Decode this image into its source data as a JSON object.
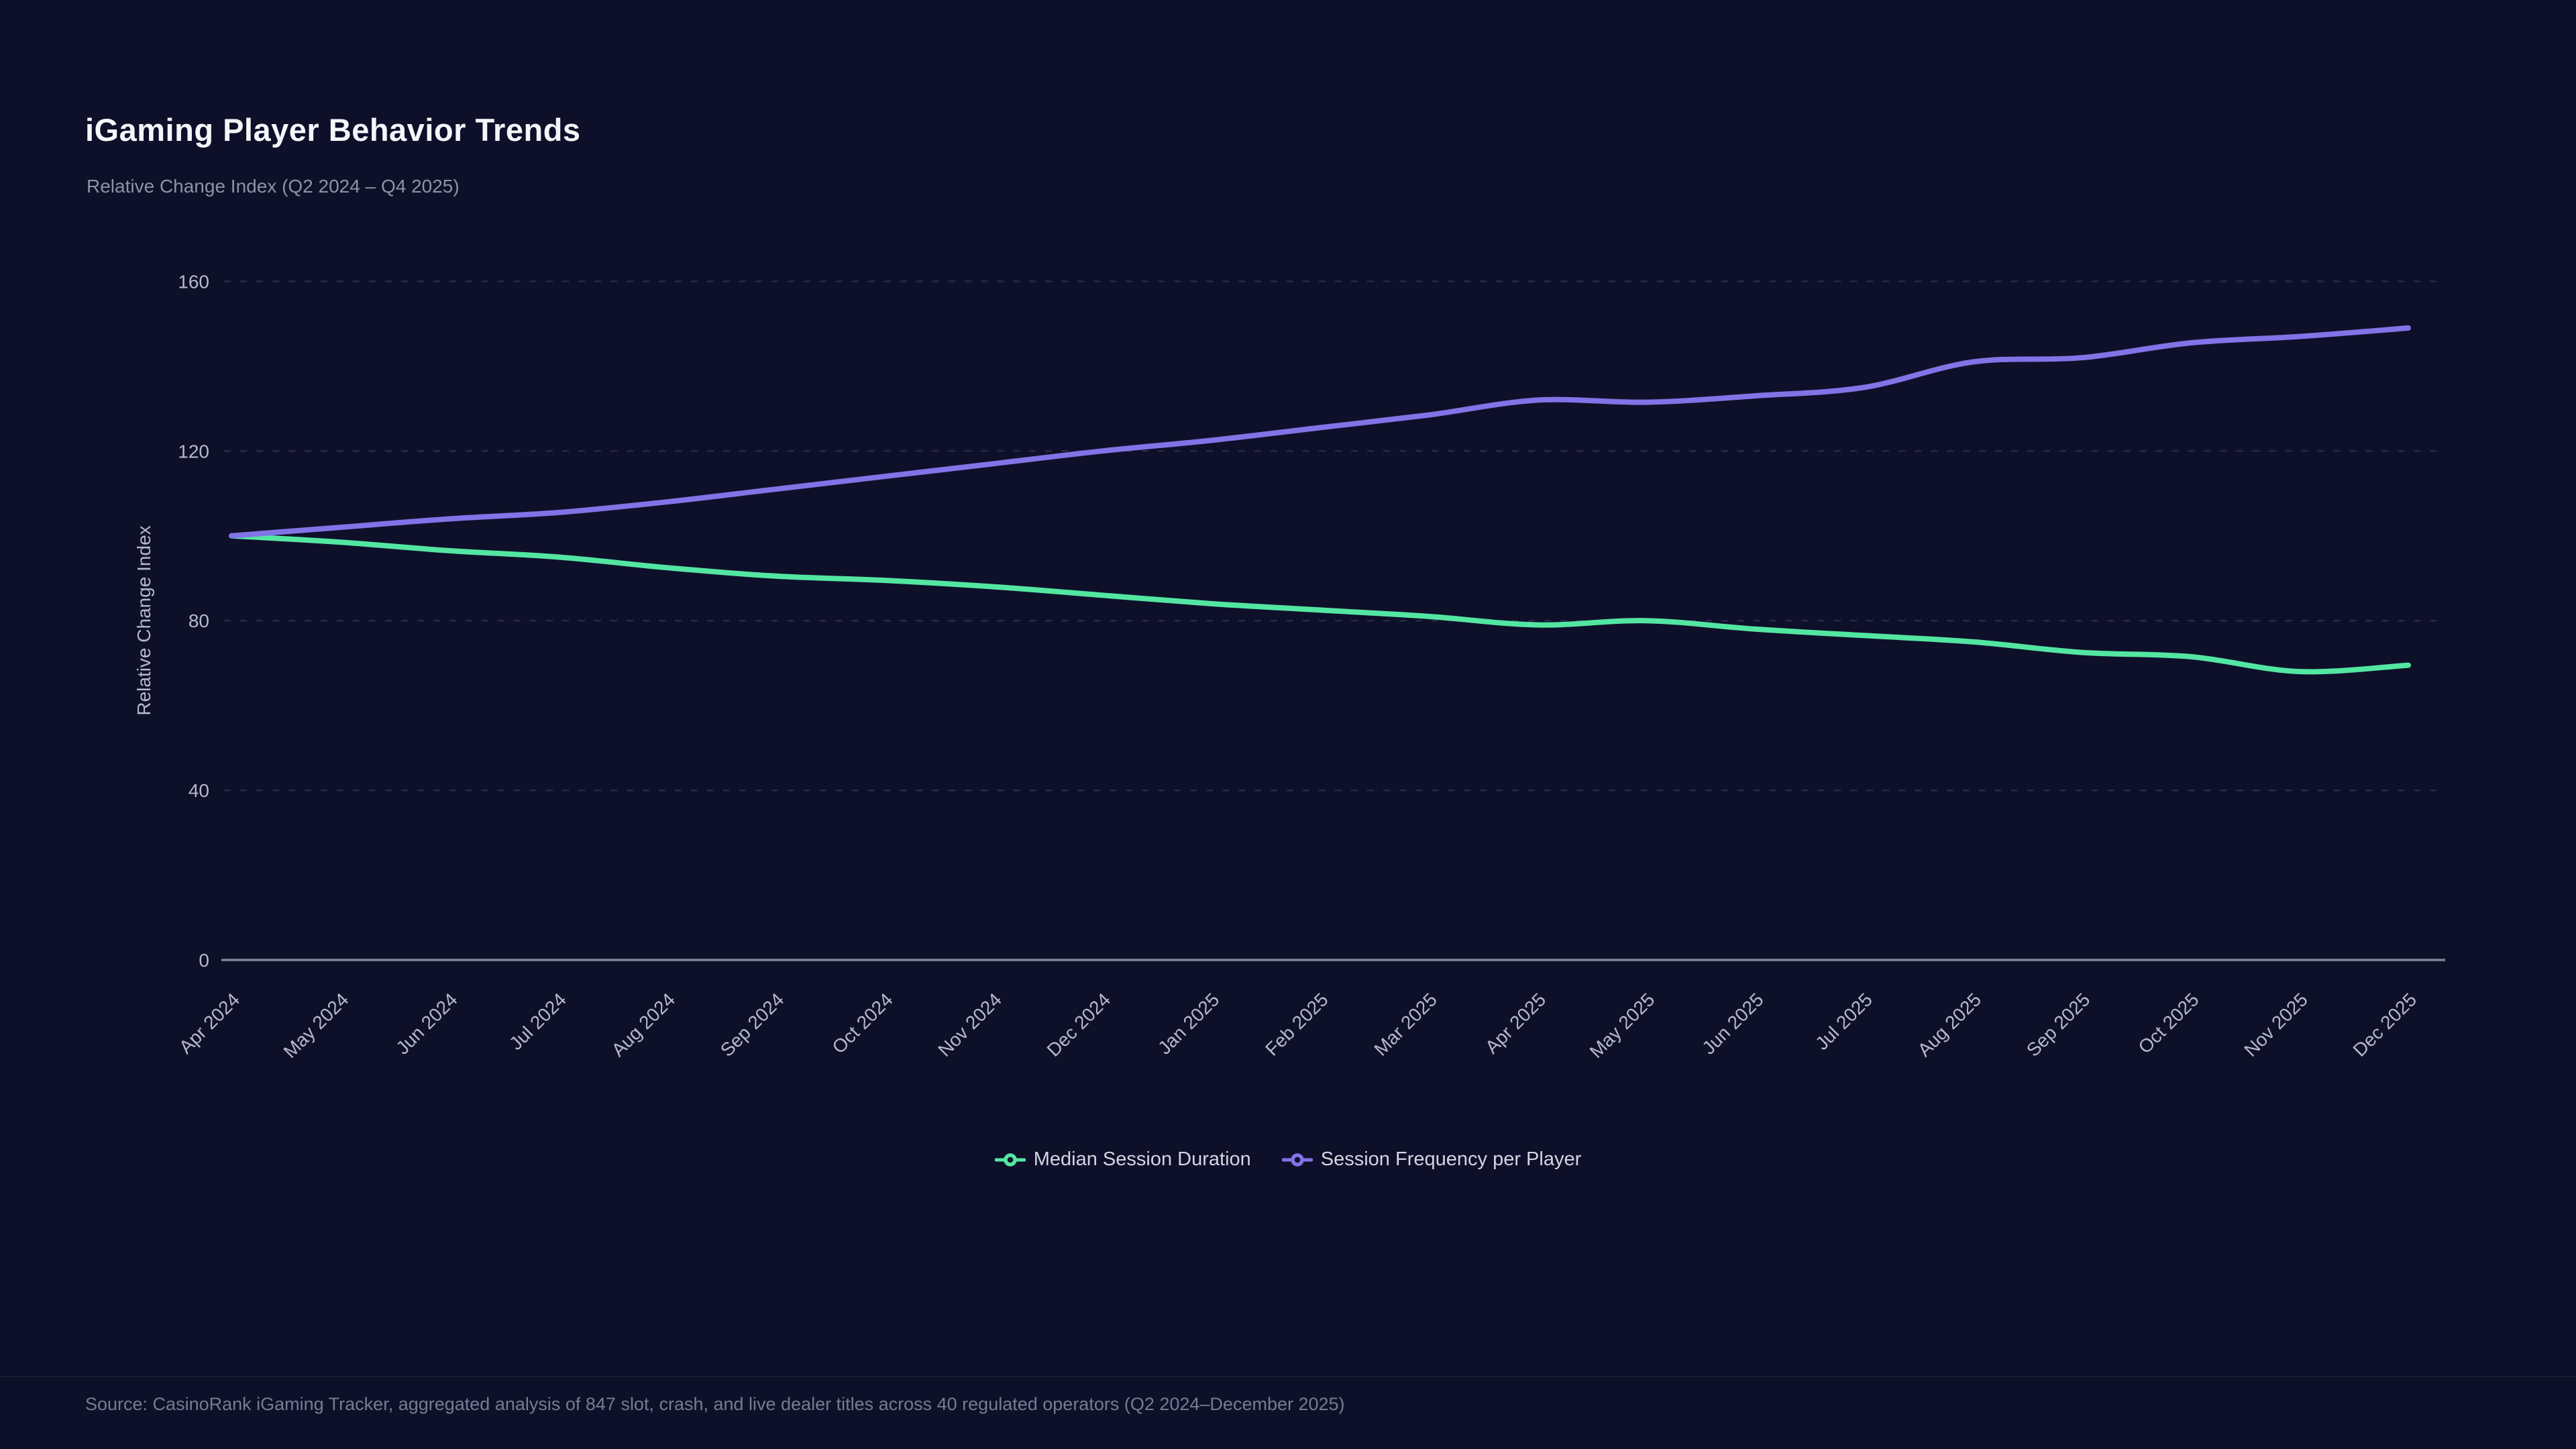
{
  "page": {
    "title": "iGaming Player Behavior Trends",
    "subtitle": "Relative Change Index (Q2 2024 – Q4 2025)",
    "source": "Source: CasinoRank iGaming Tracker, aggregated analysis of 847 slot, crash, and live dealer titles across 40 regulated operators (Q2 2024–December 2025)"
  },
  "colors": {
    "background": "#0e102a",
    "title_text": "#f5f6fa",
    "subtitle_text": "#8e92a8",
    "axis_text": "#b6b9c8",
    "axis_line": "#83869b",
    "gridline": "rgba(195,200,225,0.14)",
    "legend_text": "#d3d5e0",
    "source_text": "#767b92",
    "series_green": "#53e6a2",
    "series_purple": "#8273e6"
  },
  "chart_data": {
    "type": "line",
    "title": "iGaming Player Behavior Trends",
    "subtitle": "Relative Change Index (Q2 2024 – Q4 2025)",
    "xlabel": "",
    "ylabel": "Relative Change Index",
    "ylim": [
      0,
      160
    ],
    "yticks": [
      0,
      40,
      80,
      120,
      160
    ],
    "grid": "horizontal-dashed",
    "line_style": "smooth-spline",
    "legend_position": "bottom-center",
    "categories": [
      "Apr 2024",
      "May 2024",
      "Jun 2024",
      "Jul 2024",
      "Aug 2024",
      "Sep 2024",
      "Oct 2024",
      "Nov 2024",
      "Dec 2024",
      "Jan 2025",
      "Feb 2025",
      "Mar 2025",
      "Apr 2025",
      "May 2025",
      "Jun 2025",
      "Jul 2025",
      "Aug 2025",
      "Sep 2025",
      "Oct 2025",
      "Nov 2025",
      "Dec 2025"
    ],
    "series": [
      {
        "name": "Median Session Duration",
        "color": "#53e6a2",
        "values": [
          100,
          98.5,
          96.5,
          95,
          92.5,
          90.5,
          89.5,
          88,
          86,
          84,
          82.5,
          81,
          79,
          80,
          78,
          76.5,
          75,
          72.5,
          71.5,
          68,
          69.5
        ]
      },
      {
        "name": "Session Frequency per Player",
        "color": "#8273e6",
        "values": [
          100,
          102,
          104,
          105.5,
          108,
          111,
          114,
          117,
          120,
          122.5,
          125.5,
          128.5,
          132,
          131.5,
          133,
          135,
          141,
          142,
          145.5,
          147,
          149
        ]
      }
    ]
  }
}
